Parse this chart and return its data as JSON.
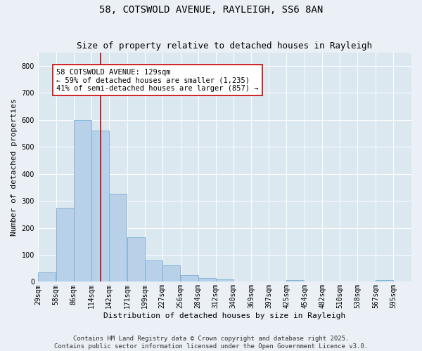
{
  "title": "58, COTSWOLD AVENUE, RAYLEIGH, SS6 8AN",
  "subtitle": "Size of property relative to detached houses in Rayleigh",
  "xlabel": "Distribution of detached houses by size in Rayleigh",
  "ylabel": "Number of detached properties",
  "bins": [
    29,
    58,
    86,
    114,
    142,
    171,
    199,
    227,
    256,
    284,
    312,
    340,
    369,
    397,
    425,
    454,
    482,
    510,
    538,
    567,
    595
  ],
  "counts": [
    35,
    275,
    600,
    560,
    325,
    165,
    80,
    60,
    25,
    15,
    10,
    0,
    0,
    0,
    5,
    0,
    0,
    0,
    0,
    5,
    0
  ],
  "bar_color": "#b8d0e8",
  "bar_edge_color": "#7bafd4",
  "vline_x": 129,
  "vline_color": "#cc0000",
  "annotation_text": "58 COTSWOLD AVENUE: 129sqm\n← 59% of detached houses are smaller (1,235)\n41% of semi-detached houses are larger (857) →",
  "annotation_box_color": "#ffffff",
  "annotation_box_edge": "#cc0000",
  "ylim": [
    0,
    850
  ],
  "yticks": [
    0,
    100,
    200,
    300,
    400,
    500,
    600,
    700,
    800
  ],
  "background_color": "#dce8f0",
  "fig_background_color": "#eaf0f6",
  "footer_text": "Contains HM Land Registry data © Crown copyright and database right 2025.\nContains public sector information licensed under the Open Government Licence v3.0.",
  "title_fontsize": 10,
  "subtitle_fontsize": 9,
  "axis_label_fontsize": 8,
  "tick_fontsize": 7,
  "annotation_fontsize": 7.5,
  "footer_fontsize": 6.5
}
